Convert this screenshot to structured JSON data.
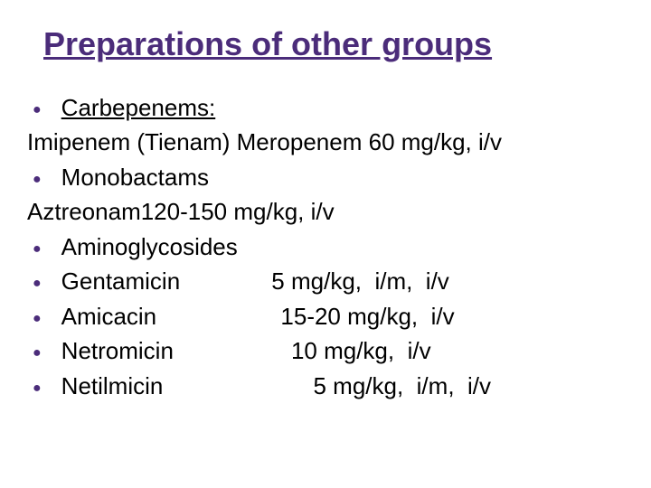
{
  "title": "Preparations of other groups",
  "lines": {
    "l0": {
      "text": "Carbepenems:",
      "underline": true
    },
    "l1": {
      "text": "Imipenem (Tienam) Meropenem  60 mg/kg,  i/v"
    },
    "l2": {
      "text": "Monobactams"
    },
    "l3": {
      "text": "Aztreonam120-150 mg/kg,  i/v"
    },
    "l4": {
      "text": "Aminoglycosides"
    },
    "l5": {
      "text": "Gentamicin              5 mg/kg,  i/m,  i/v"
    },
    "l6": {
      "text": "Amicacin                   15-20 mg/kg,  i/v"
    },
    "l7": {
      "text": "Netromicin                  10 mg/kg,  i/v"
    },
    "l8": {
      "text": "Netilmicin                       5 mg/kg,  i/m,  i/v"
    }
  },
  "colors": {
    "title_color": "#4b2c7a",
    "bullet_color": "#4b2c7a",
    "text_color": "#000000",
    "background": "#ffffff"
  }
}
